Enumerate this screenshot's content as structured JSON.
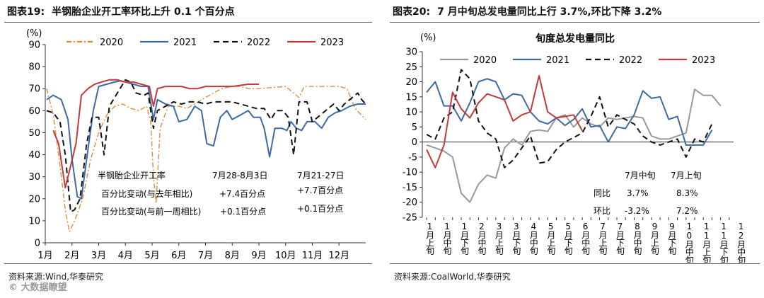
{
  "left": {
    "fig_num": "图表19:",
    "title": "半钢胎企业开工率环比上升 0.1 个百分点",
    "source": "资料来源:Wind,华泰研究",
    "watermark": "© 大数据瞭望",
    "annotation": {
      "header": "半钢胎企业开工率",
      "col1": "7月28-8月3日",
      "col2": "7月21-27日",
      "row1_label": "百分比变动(与去年相比)",
      "row1_v1": "+7.4百分点",
      "row1_v2": "+7.7百分点",
      "row2_label": "百分比变动(与前一周相比)",
      "row2_v1": "+0.1百分点",
      "row2_v2": "+0.1百分点"
    }
  },
  "right": {
    "fig_num": "图表20:",
    "title": "7 月中旬总发电量同比上行 3.7%,环比下降 3.2%",
    "source": "资料来源:CoalWorld,华泰研究",
    "annotation": {
      "col1": "7月中旬",
      "col2": "7月上旬",
      "row1_label": "同比",
      "row1_v1": "3.7%",
      "row1_v2": "8.3%",
      "row2_label": "环比",
      "row2_v1": "-3.2%",
      "row2_v2": "7.2%"
    }
  },
  "chart_data": [
    {
      "type": "line",
      "title": "",
      "ylabel": "(%)",
      "xlabel": "",
      "ylim": [
        0,
        90
      ],
      "yticks": [
        0,
        10,
        20,
        30,
        40,
        50,
        60,
        70,
        80,
        90
      ],
      "x_range": [
        1,
        13
      ],
      "xtick_positions": [
        1,
        2,
        3,
        4,
        5,
        6,
        7,
        8,
        9,
        10,
        11,
        12
      ],
      "xtick_labels": [
        "1月",
        "2月",
        "3月",
        "4月",
        "5月",
        "6月",
        "7月",
        "8月",
        "9月",
        "10月",
        "11月",
        "12月"
      ],
      "legend_position": "top",
      "series": [
        {
          "name": "2020",
          "color": "#e08a3c",
          "dash": "dashdot",
          "points": [
            [
              1.05,
              70
            ],
            [
              1.3,
              58
            ],
            [
              1.55,
              35
            ],
            [
              1.75,
              15
            ],
            [
              1.9,
              5
            ],
            [
              2.1,
              10
            ],
            [
              2.4,
              20
            ],
            [
              2.7,
              38
            ],
            [
              3.0,
              50
            ],
            [
              3.3,
              58
            ],
            [
              3.6,
              62
            ],
            [
              3.9,
              63
            ],
            [
              4.2,
              61
            ],
            [
              4.5,
              60
            ],
            [
              4.8,
              62
            ],
            [
              4.95,
              55
            ],
            [
              5.05,
              30
            ],
            [
              5.15,
              18
            ],
            [
              5.3,
              52
            ],
            [
              5.6,
              62
            ],
            [
              6.0,
              62
            ],
            [
              6.3,
              61
            ],
            [
              6.6,
              63
            ],
            [
              7.0,
              66
            ],
            [
              7.3,
              68
            ],
            [
              7.6,
              70
            ],
            [
              8.0,
              71
            ],
            [
              8.3,
              71
            ],
            [
              8.6,
              70
            ],
            [
              9.0,
              70
            ],
            [
              9.5,
              70.5
            ],
            [
              10.0,
              71
            ],
            [
              10.2,
              69
            ],
            [
              10.5,
              66
            ],
            [
              10.7,
              71
            ],
            [
              11.0,
              71
            ],
            [
              11.5,
              71
            ],
            [
              12.0,
              71
            ],
            [
              12.3,
              70
            ],
            [
              12.5,
              64
            ],
            [
              12.6,
              61
            ],
            [
              13.0,
              56
            ]
          ]
        },
        {
          "name": "2021",
          "color": "#3e6aa3",
          "dash": "solid",
          "points": [
            [
              1.05,
              65
            ],
            [
              1.3,
              67
            ],
            [
              1.6,
              65
            ],
            [
              1.85,
              56
            ],
            [
              2.0,
              38
            ],
            [
              2.2,
              21
            ],
            [
              2.35,
              20
            ],
            [
              2.55,
              38
            ],
            [
              2.8,
              60
            ],
            [
              3.0,
              71
            ],
            [
              3.3,
              72
            ],
            [
              3.6,
              73
            ],
            [
              3.8,
              73.5
            ],
            [
              4.0,
              73
            ],
            [
              4.3,
              72
            ],
            [
              4.6,
              71
            ],
            [
              4.85,
              71
            ],
            [
              5.05,
              56
            ],
            [
              5.2,
              65
            ],
            [
              5.5,
              63
            ],
            [
              5.8,
              62
            ],
            [
              6.0,
              55
            ],
            [
              6.3,
              56
            ],
            [
              6.6,
              62
            ],
            [
              6.85,
              60
            ],
            [
              7.05,
              45
            ],
            [
              7.3,
              44
            ],
            [
              7.55,
              57
            ],
            [
              7.8,
              60
            ],
            [
              8.0,
              56
            ],
            [
              8.3,
              58
            ],
            [
              8.6,
              60
            ],
            [
              8.8,
              57
            ],
            [
              9.05,
              57
            ],
            [
              9.2,
              52
            ],
            [
              9.4,
              39
            ],
            [
              9.6,
              52
            ],
            [
              9.85,
              52
            ],
            [
              10.05,
              51
            ],
            [
              10.2,
              55
            ],
            [
              10.4,
              52
            ],
            [
              10.6,
              51
            ],
            [
              10.8,
              55
            ],
            [
              11.1,
              55
            ],
            [
              11.35,
              52
            ],
            [
              11.6,
              57
            ],
            [
              11.85,
              59
            ],
            [
              12.1,
              60
            ],
            [
              12.4,
              62
            ],
            [
              12.7,
              63
            ],
            [
              13.0,
              63
            ]
          ]
        },
        {
          "name": "2022",
          "color": "#111111",
          "dash": "dashed",
          "points": [
            [
              1.05,
              60
            ],
            [
              1.3,
              59
            ],
            [
              1.55,
              55
            ],
            [
              1.75,
              40
            ],
            [
              1.95,
              14
            ],
            [
              2.1,
              15
            ],
            [
              2.3,
              20
            ],
            [
              2.55,
              45
            ],
            [
              2.75,
              57
            ],
            [
              3.0,
              57
            ],
            [
              3.2,
              40
            ],
            [
              3.4,
              62
            ],
            [
              3.7,
              68
            ],
            [
              4.0,
              74
            ],
            [
              4.2,
              73
            ],
            [
              4.4,
              68
            ],
            [
              4.7,
              67
            ],
            [
              4.85,
              68
            ],
            [
              5.05,
              52
            ],
            [
              5.2,
              60
            ],
            [
              5.5,
              62
            ],
            [
              5.8,
              64
            ],
            [
              6.1,
              63
            ],
            [
              6.4,
              64
            ],
            [
              6.7,
              64
            ],
            [
              7.0,
              63
            ],
            [
              7.3,
              64
            ],
            [
              7.6,
              64
            ],
            [
              8.0,
              64
            ],
            [
              8.3,
              63
            ],
            [
              8.6,
              62
            ],
            [
              8.9,
              61
            ],
            [
              9.2,
              61
            ],
            [
              9.45,
              56
            ],
            [
              9.65,
              60
            ],
            [
              9.9,
              60
            ],
            [
              10.1,
              57
            ],
            [
              10.3,
              40
            ],
            [
              10.5,
              64
            ],
            [
              10.8,
              64
            ],
            [
              11.0,
              55
            ],
            [
              11.3,
              58
            ],
            [
              11.6,
              61
            ],
            [
              11.8,
              63
            ],
            [
              12.0,
              60
            ],
            [
              12.2,
              63
            ],
            [
              12.5,
              66
            ],
            [
              12.7,
              68
            ],
            [
              12.85,
              65
            ],
            [
              13.0,
              63
            ]
          ]
        },
        {
          "name": "2023",
          "color": "#c23a3a",
          "dash": "solid",
          "points": [
            [
              1.3,
              51
            ],
            [
              1.5,
              45
            ],
            [
              1.75,
              25
            ],
            [
              1.95,
              35
            ],
            [
              2.15,
              45
            ],
            [
              2.35,
              67
            ],
            [
              2.6,
              70
            ],
            [
              2.85,
              72
            ],
            [
              3.1,
              73
            ],
            [
              3.4,
              74
            ],
            [
              3.7,
              74
            ],
            [
              4.0,
              73
            ],
            [
              4.3,
              73
            ],
            [
              4.6,
              72
            ],
            [
              4.9,
              71
            ],
            [
              5.05,
              62
            ],
            [
              5.2,
              70
            ],
            [
              5.5,
              71
            ],
            [
              5.8,
              71
            ],
            [
              6.1,
              71
            ],
            [
              6.4,
              70
            ],
            [
              6.7,
              70
            ],
            [
              7.0,
              71
            ],
            [
              7.3,
              71
            ],
            [
              7.6,
              71
            ],
            [
              8.0,
              71
            ],
            [
              8.3,
              71.5
            ],
            [
              8.6,
              72
            ],
            [
              9.0,
              72
            ]
          ]
        }
      ]
    },
    {
      "type": "line",
      "title": "旬度总发电量同比",
      "ylabel": "(%)",
      "xlabel": "",
      "ylim": [
        -25,
        30
      ],
      "yticks": [
        -25,
        -20,
        -15,
        -10,
        -5,
        0,
        5,
        10,
        15,
        20,
        25,
        30
      ],
      "x_range": [
        0.5,
        36.5
      ],
      "xtick_positions": [
        1,
        2,
        3,
        4,
        5,
        6,
        7,
        8,
        9,
        10,
        11,
        12,
        13,
        14,
        15,
        16,
        17,
        18,
        19,
        20,
        21,
        22,
        23,
        24,
        25,
        26,
        27,
        28,
        29,
        30,
        31,
        32,
        33,
        34,
        35,
        36
      ],
      "xtick_labels": [
        "1月上旬",
        "1月中旬",
        "1月下旬",
        "2月中旬",
        "3月上旬",
        "3月下旬",
        "4月中旬",
        "5月上旬",
        "5月下旬",
        "6月中旬",
        "7月上旬",
        "7月下旬",
        "8月中旬",
        "9月上旬",
        "9月下旬",
        "10月中旬",
        "11月上旬",
        "11月下旬",
        "12月中旬"
      ],
      "legend_position": "top",
      "series": [
        {
          "name": "2020",
          "color": "#999999",
          "dash": "solid",
          "x": [
            1,
            2,
            3,
            4,
            5,
            6,
            7,
            8,
            9,
            10,
            11,
            12,
            13,
            14,
            15,
            16,
            17,
            18,
            19,
            20,
            21,
            22,
            23,
            24,
            25,
            26,
            27,
            28,
            29,
            30,
            31,
            32,
            33,
            34,
            35,
            36
          ],
          "values": [
            -1,
            -2,
            -3,
            -5,
            -17,
            -20,
            -14,
            -11,
            -12,
            -2,
            1,
            -1,
            3.5,
            4,
            3.5,
            8,
            9,
            5,
            8,
            6,
            5,
            8,
            7.5,
            8,
            8.5,
            8,
            2,
            1,
            1,
            2,
            3,
            17.5,
            15.5,
            15.5,
            12,
            null
          ]
        },
        {
          "name": "2021",
          "color": "#3e6aa3",
          "dash": "solid",
          "x": [
            1,
            2,
            3,
            4,
            5,
            6,
            7,
            8,
            9,
            10,
            11,
            12,
            13,
            14,
            15,
            16,
            17,
            18,
            19,
            20,
            21,
            22,
            23,
            24,
            25,
            26,
            27,
            28,
            29,
            30,
            31,
            32,
            33,
            34,
            35,
            36
          ],
          "values": [
            16.5,
            20,
            12,
            12,
            7,
            13,
            20,
            21,
            20,
            14,
            16,
            15.5,
            10,
            7,
            6,
            8,
            5.5,
            7.5,
            11,
            5,
            5.5,
            0,
            5,
            4.5,
            9,
            17,
            14.5,
            15,
            7.5,
            8.5,
            -1,
            -1,
            -1,
            4,
            null,
            null
          ]
        },
        {
          "name": "2022",
          "color": "#111111",
          "dash": "dashed",
          "x": [
            1,
            2,
            3,
            4,
            5,
            6,
            7,
            8,
            9,
            10,
            11,
            12,
            13,
            14,
            15,
            16,
            17,
            18,
            19,
            20,
            21,
            22,
            23,
            24,
            25,
            26,
            27,
            28,
            29,
            30,
            31,
            32,
            33,
            34,
            35,
            36
          ],
          "values": [
            2.5,
            1,
            8,
            10,
            24,
            21,
            7,
            3,
            1,
            -8.5,
            -6,
            -2,
            2,
            -7,
            -6.5,
            -2.5,
            0,
            1.5,
            3,
            8.5,
            15,
            5,
            9,
            7.5,
            6,
            2,
            0,
            -1,
            0,
            1,
            -5,
            1,
            0,
            6,
            null,
            null
          ]
        },
        {
          "name": "2023",
          "color": "#c23a3a",
          "dash": "solid",
          "x": [
            1,
            2,
            3,
            4,
            5,
            6,
            7,
            8,
            9,
            10,
            11,
            12,
            13,
            14,
            15,
            16,
            17,
            18,
            19
          ],
          "values": [
            -2.5,
            -8.5,
            -1,
            16.5,
            11,
            8,
            13,
            16,
            15,
            14,
            7,
            9,
            10,
            22,
            10,
            8,
            8.5,
            9,
            3.7
          ]
        }
      ]
    }
  ]
}
